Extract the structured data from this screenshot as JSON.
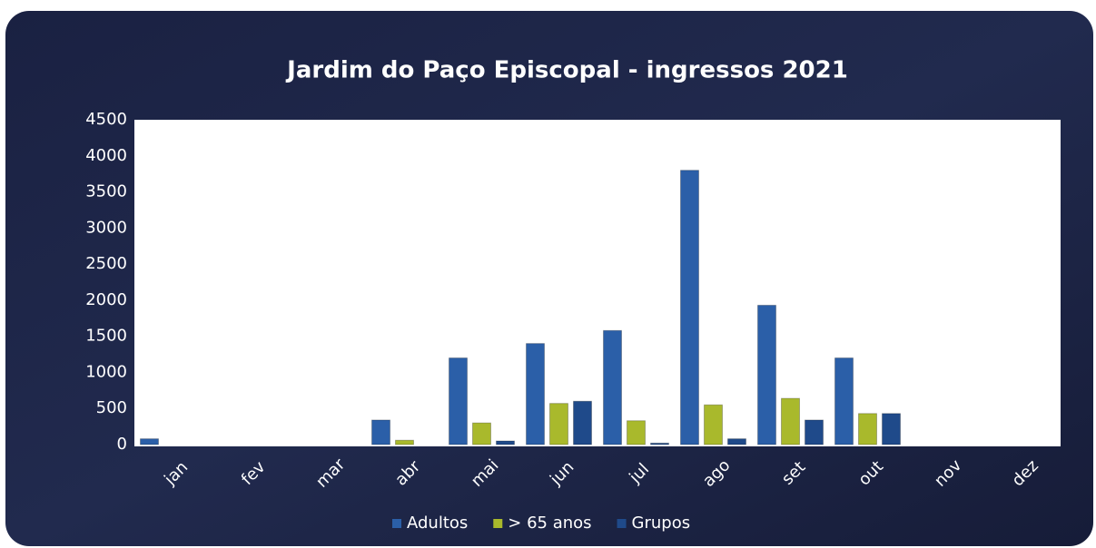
{
  "chart_data": {
    "type": "bar",
    "title": "Jardim do Paço Episcopal - ingressos 2021",
    "categories": [
      "jan",
      "fev",
      "mar",
      "abr",
      "mai",
      "jun",
      "jul",
      "ago",
      "set",
      "out",
      "nov",
      "dez"
    ],
    "series": [
      {
        "name": "Adultos",
        "color": "#2b5fa8",
        "values": [
          80,
          0,
          0,
          340,
          1200,
          1400,
          1580,
          3800,
          1930,
          1200,
          0,
          0
        ]
      },
      {
        "name": "> 65 anos",
        "color": "#a9b92c",
        "values": [
          0,
          0,
          0,
          60,
          300,
          570,
          330,
          550,
          640,
          430,
          0,
          0
        ]
      },
      {
        "name": "Grupos",
        "color": "#1f4a8a",
        "values": [
          0,
          0,
          0,
          0,
          50,
          600,
          20,
          80,
          340,
          430,
          0,
          0
        ]
      }
    ],
    "ylim": [
      0,
      4500
    ],
    "yticks": [
      0,
      500,
      1000,
      1500,
      2000,
      2500,
      3000,
      3500,
      4000,
      4500
    ],
    "grid": false,
    "legend": "bottom"
  }
}
